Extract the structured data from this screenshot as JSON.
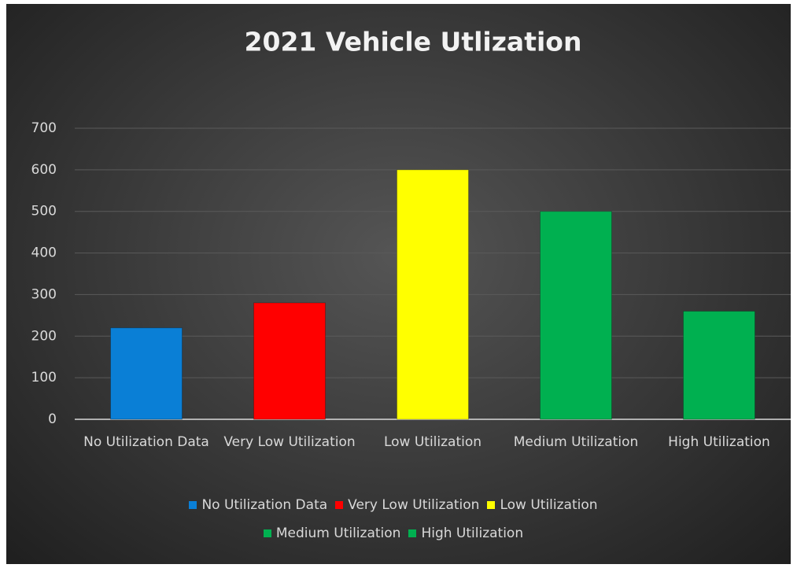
{
  "chart_data": {
    "type": "bar",
    "title": "2021 Vehicle Utlization",
    "categories": [
      "No Utilization Data",
      "Very Low Utilization",
      "Low Utilization",
      "Medium Utilization",
      "High Utilization"
    ],
    "values": [
      220,
      280,
      600,
      500,
      260
    ],
    "colors": [
      "#0a7fd6",
      "#ff0000",
      "#ffff00",
      "#00b050",
      "#00b050"
    ],
    "ylim": [
      0,
      700
    ],
    "yticks": [
      0,
      100,
      200,
      300,
      400,
      500,
      600,
      700
    ],
    "grid": true,
    "legend": "bottom"
  }
}
